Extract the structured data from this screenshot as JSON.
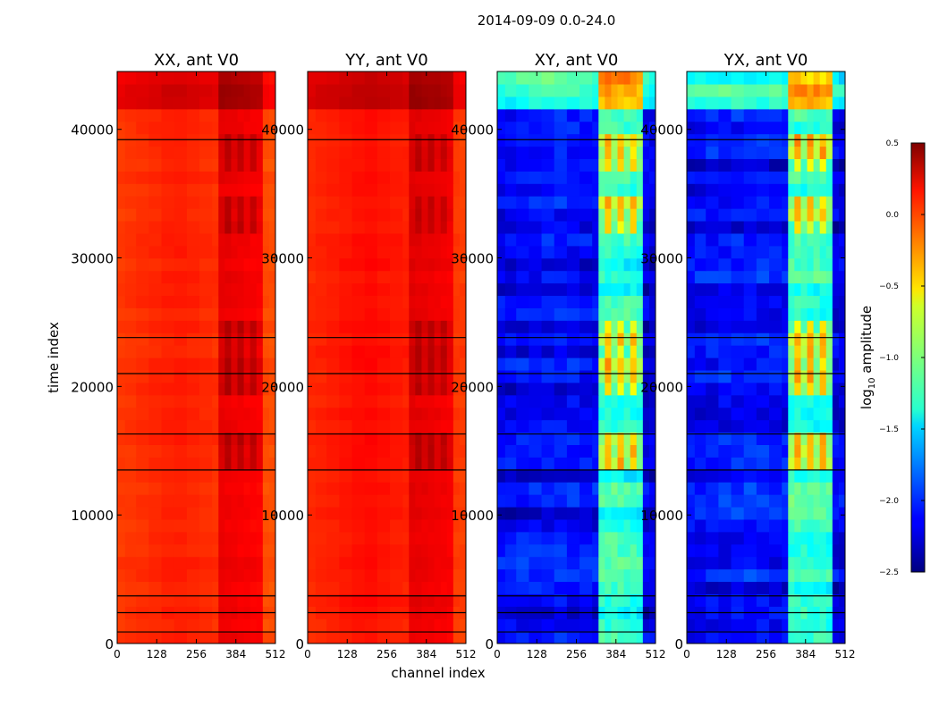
{
  "chart_data": {
    "type": "heatmap",
    "suptitle": "2014-09-09 0.0-24.0",
    "xlabel": "channel index",
    "ylabel": "time index",
    "x_range": [
      0,
      512
    ],
    "y_range": [
      0,
      44500
    ],
    "x_ticks": [
      "0",
      "128",
      "256",
      "384",
      "512"
    ],
    "y_ticks": [
      "0",
      "10000",
      "20000",
      "30000",
      "40000"
    ],
    "colormap": "jet",
    "colorbar": {
      "label_main": "log",
      "label_sub": "10",
      "label_tail": " amplitude",
      "range": [
        -2.5,
        0.5
      ],
      "ticks": [
        "0.5",
        "0.0",
        "−0.5",
        "−1.0",
        "−1.5",
        "−2.0",
        "−2.5"
      ]
    },
    "panels": [
      {
        "title": "XX, ant V0",
        "baseline": 0.05,
        "hot_band": 0.38,
        "stripes": 0.05
      },
      {
        "title": "YY, ant V0",
        "baseline": 0.1,
        "hot_band": 0.32,
        "stripes": 0.05
      },
      {
        "title": "XY, ant V0",
        "baseline": -2.1,
        "hot_band": 1.7,
        "stripes": 0.35
      },
      {
        "title": "YX, ant V0",
        "baseline": -2.1,
        "hot_band": 1.7,
        "stripes": 0.35
      }
    ],
    "dropout_rows": [
      900,
      2400,
      3700,
      13500,
      16300,
      21000,
      23800,
      39200
    ],
    "colors": {
      "axis": "#000000",
      "background": "#ffffff"
    }
  }
}
